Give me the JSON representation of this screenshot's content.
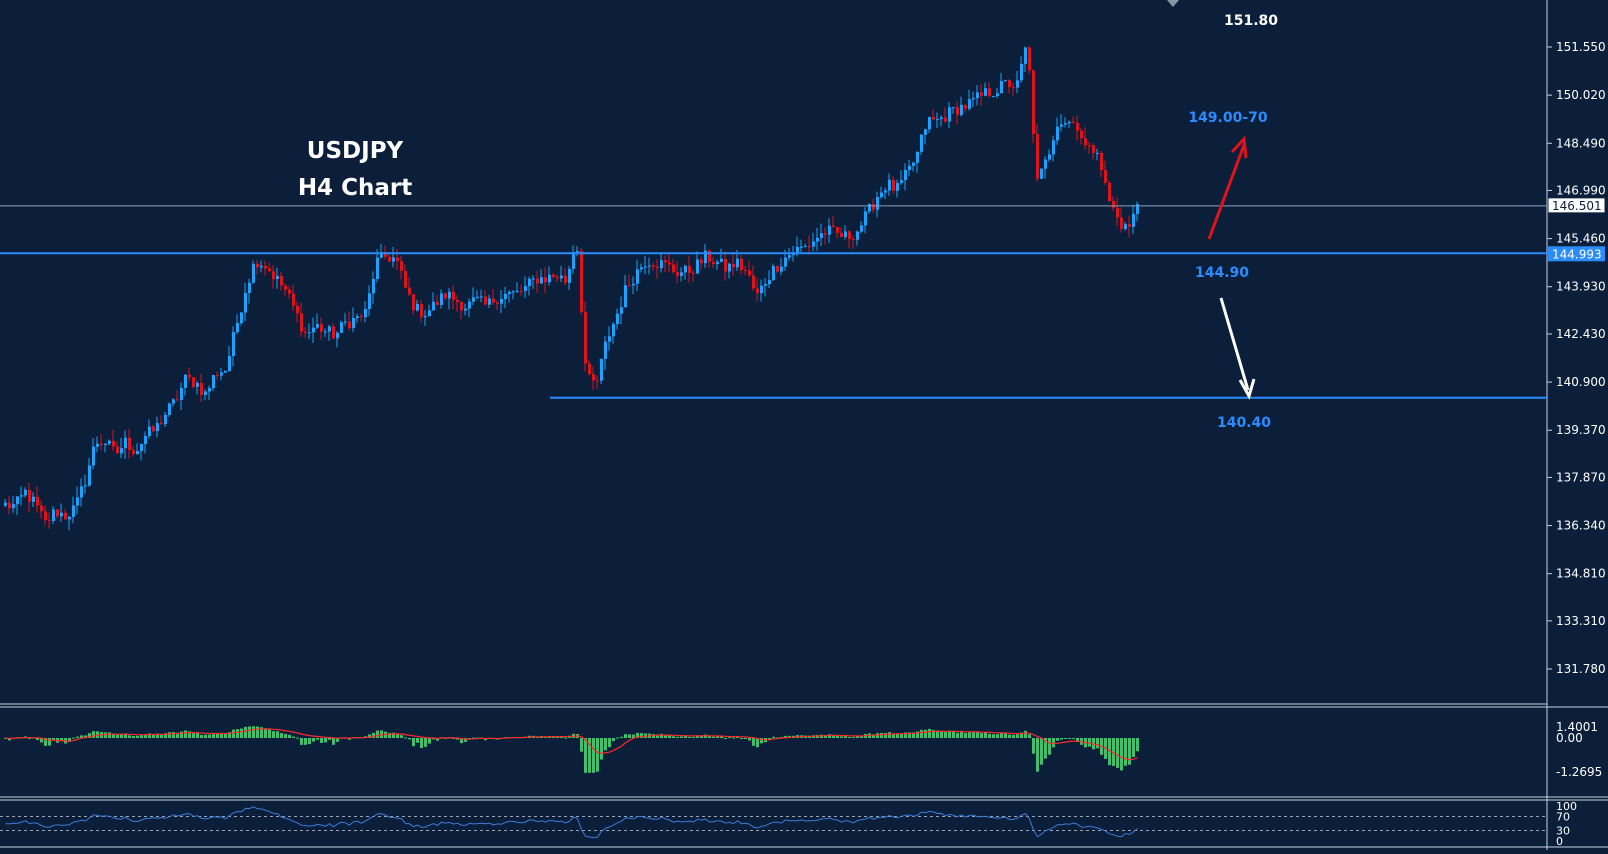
{
  "header": {
    "title": "USDJPY",
    "subtitle": "H4 Chart"
  },
  "colors": {
    "background": "#0b1f3b",
    "bull_candle": "#1aa3ff",
    "bear_candle": "#e0121b",
    "level_line": "#2a8cff",
    "current_price_line": "#8da2bd",
    "histogram": "#3fbf6f",
    "signal_line": "#ff2a2a",
    "oscillator_line": "#3b7bd9",
    "axis_text": "#ffffff",
    "arrow_up": "#e0121b",
    "arrow_down": "#ffffff"
  },
  "annotations": {
    "high_label": "151.80",
    "target_label": "149.00-70",
    "support_label": "144.90",
    "lower_label": "140.40"
  },
  "chart_data": [
    {
      "type": "candlestick",
      "title": "USDJPY",
      "subtitle": "H4 Chart",
      "ylim": [
        131.0,
        152.4
      ],
      "grid": false,
      "y_ticks": [
        "151.550",
        "150.020",
        "148.490",
        "146.990",
        "145.460",
        "143.930",
        "142.430",
        "140.900",
        "139.370",
        "137.870",
        "136.340",
        "134.810",
        "133.310",
        "131.780"
      ],
      "y_tick_values": [
        151.55,
        150.02,
        148.49,
        146.99,
        145.46,
        143.93,
        142.43,
        140.9,
        139.37,
        137.87,
        136.34,
        134.81,
        133.31,
        131.78
      ],
      "current_price": "146.501",
      "current_price_value": 146.501,
      "support_price": "144.993",
      "support_price_value": 144.993,
      "levels": [
        {
          "label": "144.90",
          "price": 144.993
        },
        {
          "label": "140.40",
          "price": 140.4
        }
      ],
      "close_path": [
        137.0,
        136.95,
        137.4,
        137.0,
        136.4,
        136.8,
        136.65,
        136.9,
        137.8,
        139.0,
        139.0,
        138.6,
        139.0,
        138.7,
        139.2,
        139.4,
        139.9,
        140.3,
        141.0,
        140.9,
        140.5,
        141.2,
        141.3,
        142.6,
        143.9,
        144.8,
        144.6,
        144.2,
        143.8,
        143.1,
        142.4,
        142.7,
        142.5,
        142.4,
        142.8,
        142.9,
        143.1,
        144.7,
        144.9,
        144.8,
        143.8,
        143.2,
        143.1,
        143.4,
        143.7,
        143.5,
        143.3,
        143.5,
        143.3,
        143.6,
        143.7,
        143.7,
        143.9,
        144.2,
        144.2,
        144.3,
        144.1,
        145.6,
        141.0,
        140.8,
        142.2,
        143.0,
        143.9,
        144.4,
        144.8,
        144.7,
        144.6,
        144.4,
        144.4,
        144.6,
        144.9,
        144.7,
        144.5,
        144.7,
        144.4,
        143.6,
        144.2,
        144.6,
        144.9,
        145.1,
        145.2,
        145.5,
        145.7,
        145.6,
        145.5,
        145.7,
        146.2,
        146.8,
        147.2,
        147.0,
        147.5,
        148.1,
        149.2,
        149.2,
        149.4,
        149.6,
        149.7,
        149.9,
        150.1,
        150.2,
        150.4,
        150.3,
        151.7,
        147.2,
        148.0,
        149.2,
        149.2,
        149.1,
        148.2,
        148.4,
        146.8,
        146.1,
        145.7,
        146.5
      ],
      "indicators": [
        {
          "type": "histogram_with_signal",
          "y_ticks": [
            "1.4001",
            "0.00",
            "-1.2695"
          ],
          "y_tick_values": [
            1.4001,
            0.0,
            -1.2695
          ],
          "ylim": [
            -1.45,
            1.6
          ]
        },
        {
          "type": "line",
          "y_ticks": [
            "100",
            "70",
            "30",
            "0"
          ],
          "y_tick_values": [
            100,
            70,
            30,
            0
          ],
          "ylim": [
            0,
            100
          ],
          "reference_lines": [
            70,
            30
          ]
        }
      ]
    }
  ]
}
